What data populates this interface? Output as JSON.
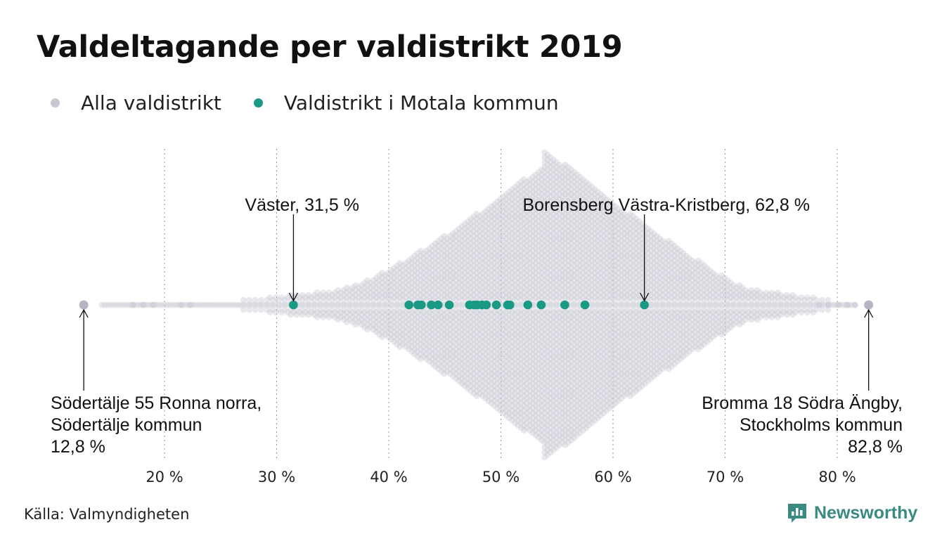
{
  "title": "Valdeltagande per valdistrikt 2019",
  "legend": [
    {
      "label": "Alla valdistrikt",
      "color": "#c9c7d3"
    },
    {
      "label": "Valdistrikt i Motala kommun",
      "color": "#1a9985"
    }
  ],
  "source": "Källa: Valmyndigheten",
  "brand": "Newsworthy",
  "chart_data": {
    "type": "scatter",
    "subtype": "beeswarm",
    "title": "Valdeltagande per valdistrikt 2019",
    "xlim": [
      12,
      84
    ],
    "x_ticks": [
      20,
      30,
      40,
      50,
      60,
      70,
      80
    ],
    "x_tick_labels": [
      "20 %",
      "30 %",
      "40 %",
      "50 %",
      "60 %",
      "70 %",
      "80 %"
    ],
    "grid": "vertical dotted",
    "series": [
      {
        "name": "Alla valdistrikt",
        "color": "#c9c7d3",
        "distribution": {
          "min": 12.8,
          "max": 82.8,
          "peak": 53.8
        }
      },
      {
        "name": "Valdistrikt i Motala kommun",
        "color": "#1a9985",
        "values": [
          31.5,
          41.8,
          42.6,
          42.9,
          43.8,
          44.4,
          45.4,
          47.2,
          47.6,
          47.9,
          48.3,
          48.7,
          49.6,
          50.6,
          50.8,
          52.4,
          53.6,
          55.7,
          57.5,
          62.8
        ]
      }
    ],
    "annotations": [
      {
        "x": 12.8,
        "text_lines": [
          "Södertälje 55 Ronna norra,",
          "Södertälje kommun",
          "12,8 %"
        ]
      },
      {
        "x": 31.5,
        "text_lines": [
          "Väster, 31,5 %"
        ]
      },
      {
        "x": 62.8,
        "text_lines": [
          "Borensberg Västra-Kristberg, 62,8 %"
        ]
      },
      {
        "x": 82.8,
        "text_lines": [
          "Bromma 18 Södra Ängby,",
          "Stockholms kommun",
          "82,8 %"
        ]
      }
    ]
  }
}
